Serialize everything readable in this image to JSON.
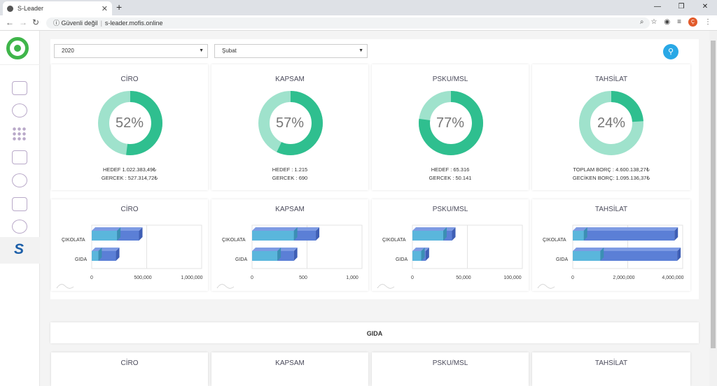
{
  "browser": {
    "tab_title": "S-Leader",
    "url_prefix": "Güvenli değil",
    "url": "s-leader.mofis.online"
  },
  "filters": {
    "year": "2020",
    "month": "Şubat"
  },
  "donut_cards": [
    {
      "title": "CİRO",
      "percent": 52,
      "pct_label": "52%",
      "line1": "HEDEF 1.022.383,49₺",
      "line2": "GERCEK : 527.314,72₺"
    },
    {
      "title": "KAPSAM",
      "percent": 57,
      "pct_label": "57%",
      "line1": "HEDEF : 1.215",
      "line2": "GERCEK : 690"
    },
    {
      "title": "PSKU/MSL",
      "percent": 77,
      "pct_label": "77%",
      "line1": "HEDEF : 65.316",
      "line2": "GERCEK : 50.141"
    },
    {
      "title": "TAHSİLAT",
      "percent": 24,
      "pct_label": "24%",
      "line1": "TOPLAM BORÇ : 4.600.138,27₺",
      "line2": "GECİKEN BORÇ: 1.095.136,37₺"
    }
  ],
  "chart_data": [
    {
      "type": "bar",
      "title": "CİRO",
      "categories": [
        "ÇIKOLATA",
        "GIDA"
      ],
      "series": [
        {
          "values": [
            230000,
            60000
          ]
        },
        {
          "values": [
            200000,
            160000
          ]
        }
      ],
      "ticks": [
        "0",
        "500,000",
        "1,000,000"
      ],
      "xlim": [
        0,
        1000000
      ]
    },
    {
      "type": "bar",
      "title": "KAPSAM",
      "categories": [
        "ÇIKOLATA",
        "GIDA"
      ],
      "series": [
        {
          "values": [
            380,
            230
          ]
        },
        {
          "values": [
            200,
            150
          ]
        }
      ],
      "ticks": [
        "0",
        "500",
        "1,000"
      ],
      "xlim": [
        0,
        1000
      ]
    },
    {
      "type": "bar",
      "title": "PSKU/MSL",
      "categories": [
        "ÇIKOLATA",
        "GIDA"
      ],
      "series": [
        {
          "values": [
            28000,
            8000
          ]
        },
        {
          "values": [
            8000,
            4000
          ]
        }
      ],
      "ticks": [
        "0",
        "50,000",
        "100,000"
      ],
      "xlim": [
        0,
        100000
      ]
    },
    {
      "type": "bar",
      "title": "TAHSİLAT",
      "categories": [
        "ÇIKOLATA",
        "GIDA"
      ],
      "series": [
        {
          "values": [
            400000,
            1000000
          ]
        },
        {
          "values": [
            3300000,
            2800000
          ]
        }
      ],
      "ticks": [
        "0",
        "2,000,000",
        "4,000,000"
      ],
      "xlim": [
        0,
        4000000
      ]
    }
  ],
  "section2": {
    "title": "GIDA",
    "card_titles": [
      "CİRO",
      "KAPSAM",
      "PSKU/MSL",
      "TAHSİLAT"
    ]
  },
  "colors": {
    "accent": "#2fbf8f",
    "light": "#9fe2cc",
    "bar_front": "#5ab6dc",
    "bar_back": "#5b7fd6",
    "fab": "#29a8e6"
  }
}
